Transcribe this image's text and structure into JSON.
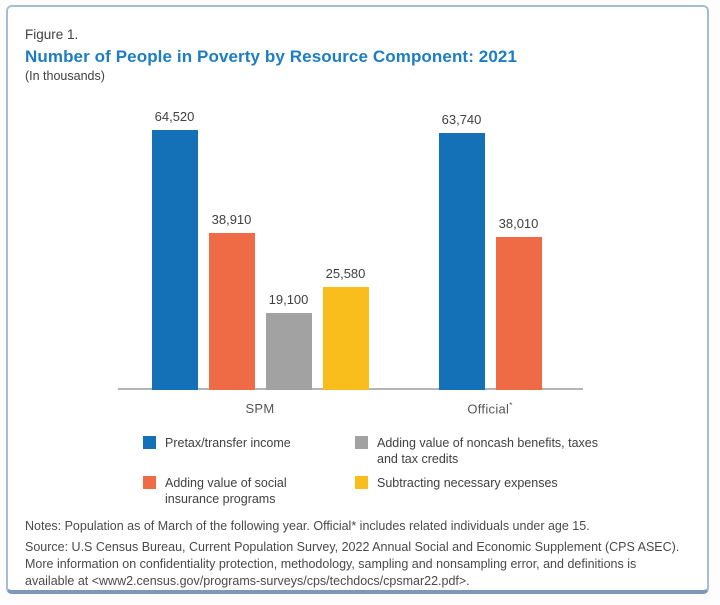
{
  "figure": {
    "label": "Figure 1.",
    "title": "Number of People in Poverty by Resource Component: 2021",
    "subtitle": "(In thousands)"
  },
  "colors": {
    "title_blue": "#1d7dc2",
    "bar_blue": "#1471b8",
    "bar_orange": "#ef6b46",
    "bar_gray": "#a2a2a2",
    "bar_yellow": "#f9bd1c",
    "axis_gray": "#b5b5b5",
    "card_border": "#a4bcd4"
  },
  "chart_data": {
    "type": "bar",
    "title": "Number of People in Poverty by Resource Component: 2021",
    "units": "thousands",
    "categories": [
      "SPM",
      "Official*"
    ],
    "series": [
      {
        "name": "Pretax/transfer income",
        "color": "#1471b8",
        "values": [
          64520,
          63740
        ]
      },
      {
        "name": "Adding value of social insurance programs",
        "color": "#ef6b46",
        "values": [
          38910,
          38010
        ]
      },
      {
        "name": "Adding value of noncash benefits, taxes and tax credits",
        "color": "#a2a2a2",
        "values": [
          19100,
          null
        ]
      },
      {
        "name": "Subtracting necessary expenses",
        "color": "#f9bd1c",
        "values": [
          25580,
          null
        ]
      }
    ],
    "data_labels": {
      "SPM": [
        "64,520",
        "38,910",
        "19,100",
        "25,580"
      ],
      "Official*": [
        "63,740",
        "38,010"
      ]
    },
    "ylim": [
      0,
      70000
    ],
    "grid": false,
    "y_axis_shown": false,
    "legend_position": "bottom"
  },
  "legend": {
    "order": [
      0,
      2,
      1,
      3
    ]
  },
  "notes": {
    "line1": "Notes: Population as of March of the following year. Official* includes related individuals under age 15.",
    "source": "Source: U.S Census Bureau, Current Population Survey, 2022 Annual Social and Economic Supplement (CPS ASEC). More information on confidentiality protection, methodology, sampling and nonsampling error, and definitions is available at <www2.census.gov/programs-surveys/cps/techdocs/cpsmar22.pdf>."
  }
}
